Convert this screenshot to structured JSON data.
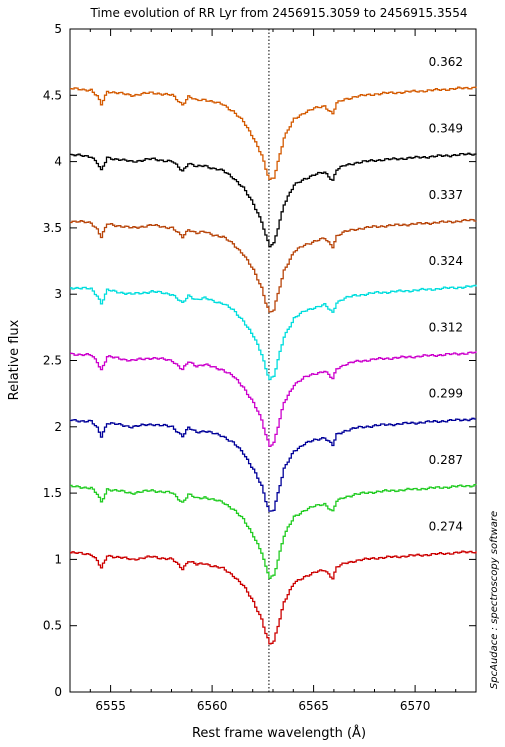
{
  "chart_data": {
    "type": "line",
    "title": "Time evolution of RR Lyr from 2456915.3059 to 2456915.3554",
    "xlabel": "Rest frame wavelength (Å)",
    "ylabel": "Relative flux",
    "credit": "SpcAudace : spectroscopy software",
    "xlim": [
      6553,
      6573
    ],
    "ylim": [
      0,
      5
    ],
    "x_ticks": [
      6555,
      6560,
      6565,
      6570
    ],
    "x_tick_labels": [
      "6555",
      "6560",
      "6565",
      "6570"
    ],
    "y_ticks": [
      0,
      0.5,
      1,
      1.5,
      2,
      2.5,
      3,
      3.5,
      4,
      4.5,
      5
    ],
    "y_tick_labels": [
      "0",
      "0.5",
      "1",
      "1.5",
      "2",
      "2.5",
      "3",
      "3.5",
      "4",
      "4.5",
      "5"
    ],
    "reference_line_x": 6562.8,
    "grid": false,
    "series": [
      {
        "phase_label": "0.274",
        "offset": 0.0,
        "color": "#cc0000"
      },
      {
        "phase_label": "0.287",
        "offset": 0.5,
        "color": "#22cc22"
      },
      {
        "phase_label": "0.299",
        "offset": 1.0,
        "color": "#000099"
      },
      {
        "phase_label": "0.312",
        "offset": 1.5,
        "color": "#cc00cc"
      },
      {
        "phase_label": "0.324",
        "offset": 2.0,
        "color": "#00dddd"
      },
      {
        "phase_label": "0.337",
        "offset": 2.5,
        "color": "#b8450a"
      },
      {
        "phase_label": "0.349",
        "offset": 3.0,
        "color": "#000000"
      },
      {
        "phase_label": "0.362",
        "offset": 3.5,
        "color": "#d45a00"
      }
    ],
    "base_profile": {
      "x": [
        6553,
        6554,
        6554.3,
        6554.5,
        6554.8,
        6556,
        6557,
        6558,
        6558.5,
        6558.8,
        6559.2,
        6559.6,
        6560,
        6560.5,
        6561,
        6561.5,
        6562,
        6562.4,
        6562.6,
        6562.8,
        6563.0,
        6563.2,
        6563.5,
        6564,
        6564.5,
        6565,
        6565.5,
        6565.9,
        6566.1,
        6566.5,
        6567,
        6568,
        6569,
        6570,
        6571,
        6572,
        6573
      ],
      "y": [
        1.05,
        1.04,
        0.99,
        0.93,
        1.03,
        1.0,
        1.02,
        1.0,
        0.93,
        0.99,
        0.96,
        0.97,
        0.95,
        0.93,
        0.88,
        0.8,
        0.68,
        0.55,
        0.44,
        0.36,
        0.38,
        0.5,
        0.68,
        0.82,
        0.87,
        0.9,
        0.92,
        0.86,
        0.94,
        0.97,
        0.99,
        1.01,
        1.02,
        1.03,
        1.04,
        1.05,
        1.06
      ]
    }
  }
}
